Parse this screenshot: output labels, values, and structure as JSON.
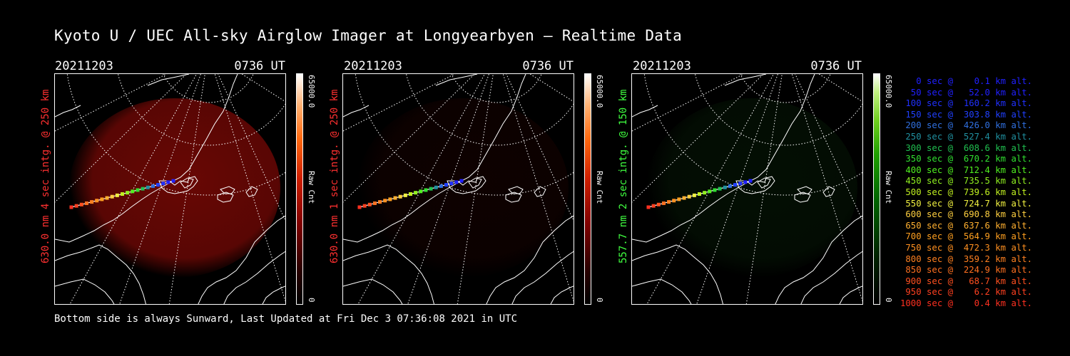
{
  "title": "Kyoto U / UEC All-sky Airglow Imager at Longyearbyen — Realtime Data",
  "footer": "Bottom side is always Sunward, Last Updated at Fri Dec  3 07:36:08 2021 in UTC",
  "panels": [
    {
      "date": "20211203",
      "time": "0736 UT",
      "ylabel": "630.0 nm 4 sec intg. @ 250 km",
      "color": "#ff3030",
      "scale_max": "65000.0",
      "scale_unit": "Raw Cnt",
      "scale_min": "0",
      "glow": "#8b0a06",
      "glow_level": 0.75
    },
    {
      "date": "20211203",
      "time": "0736 UT",
      "ylabel": "630.0 nm 1 sec intg. @ 250 km",
      "color": "#ff3030",
      "scale_max": "65000.0",
      "scale_unit": "Raw Cnt",
      "scale_min": "0",
      "glow": "#2e0302",
      "glow_level": 0.3
    },
    {
      "date": "20211203",
      "time": "0736 UT",
      "ylabel": "557.7 nm 2 sec intg. @ 150 km",
      "color": "#40ff40",
      "scale_max": "65000.0",
      "scale_unit": "Raw Cnt",
      "scale_min": "0",
      "glow": "#0b300b",
      "glow_level": 0.3
    }
  ],
  "legend": [
    {
      "text": "   0 sec @    0.1 km alt.",
      "color": "#2020ff"
    },
    {
      "text": "  50 sec @   52.0 km alt.",
      "color": "#2020ff"
    },
    {
      "text": " 100 sec @  160.2 km alt.",
      "color": "#2030ff"
    },
    {
      "text": " 150 sec @  303.8 km alt.",
      "color": "#2040ff"
    },
    {
      "text": " 200 sec @  426.0 km alt.",
      "color": "#3070e0"
    },
    {
      "text": " 250 sec @  527.4 km alt.",
      "color": "#2090a0"
    },
    {
      "text": " 300 sec @  608.6 km alt.",
      "color": "#20c050"
    },
    {
      "text": " 350 sec @  670.2 km alt.",
      "color": "#30e030"
    },
    {
      "text": " 400 sec @  712.4 km alt.",
      "color": "#50f020"
    },
    {
      "text": " 450 sec @  735.5 km alt.",
      "color": "#90f020"
    },
    {
      "text": " 500 sec @  739.6 km alt.",
      "color": "#c0f020"
    },
    {
      "text": " 550 sec @  724.7 km alt.",
      "color": "#f0f040"
    },
    {
      "text": " 600 sec @  690.8 km alt.",
      "color": "#ffd040"
    },
    {
      "text": " 650 sec @  637.6 km alt.",
      "color": "#ffb030"
    },
    {
      "text": " 700 sec @  564.9 km alt.",
      "color": "#ffa020"
    },
    {
      "text": " 750 sec @  472.3 km alt.",
      "color": "#ff9020"
    },
    {
      "text": " 800 sec @  359.2 km alt.",
      "color": "#ff8020"
    },
    {
      "text": " 850 sec @  224.9 km alt.",
      "color": "#ff7020"
    },
    {
      "text": " 900 sec @   68.7 km alt.",
      "color": "#ff5020"
    },
    {
      "text": " 950 sec @    6.2 km alt.",
      "color": "#ff4020"
    },
    {
      "text": "1000 sec @    0.4 km alt.",
      "color": "#ff3020"
    }
  ]
}
